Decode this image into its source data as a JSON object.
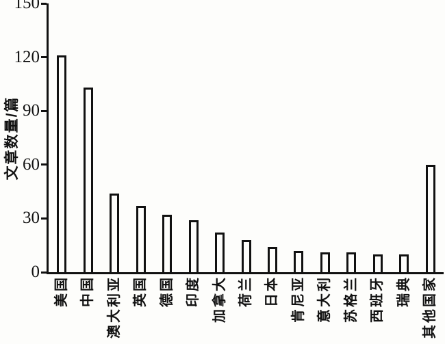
{
  "figure": {
    "background": "#fdfdfb",
    "axis_color": "#111111"
  },
  "chart_data": {
    "type": "bar",
    "title": "",
    "xlabel": "",
    "ylabel": "文章数量/篇",
    "categories": [
      "美国",
      "中国",
      "澳大利亚",
      "英国",
      "德国",
      "印度",
      "加拿大",
      "荷兰",
      "日本",
      "肯尼亚",
      "意大利",
      "苏格兰",
      "西班牙",
      "瑞典",
      "其他国家"
    ],
    "values": [
      121,
      103,
      44,
      37,
      32,
      29,
      22,
      18,
      14,
      12,
      11,
      11,
      10,
      10,
      60
    ],
    "ylim": [
      0,
      150
    ],
    "yticks": [
      0,
      30,
      60,
      90,
      120,
      150
    ],
    "bar_fill": "#fdfdfb",
    "bar_border": "#111111",
    "grid": false,
    "legend": "none",
    "x_tick_label_rotation": 90,
    "spines": "left and bottom only"
  }
}
